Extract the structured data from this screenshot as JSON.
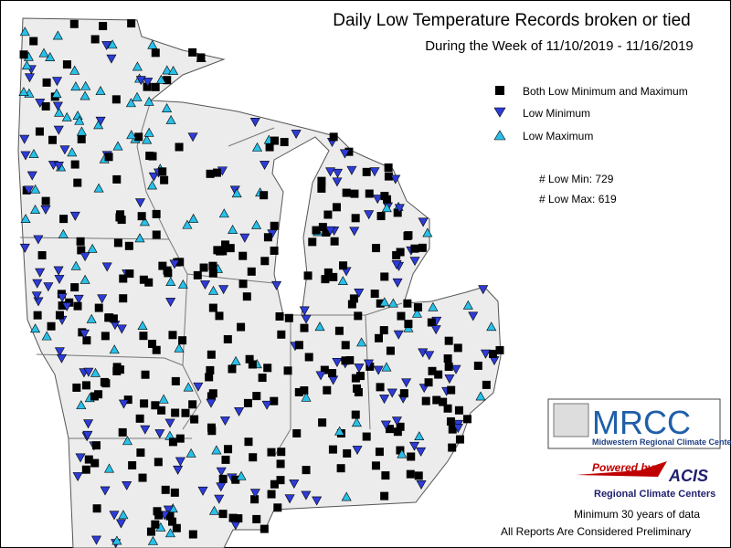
{
  "title": "Daily Low Temperature Records broken or tied",
  "subtitle": "During the Week of 11/10/2019 - 11/16/2019",
  "legend": [
    {
      "label": "Both Low Minimum and Maximum"
    },
    {
      "label": "Low Minimum"
    },
    {
      "label": "Low Maximum"
    }
  ],
  "counts": [
    "# Low Min: 729",
    "# Low Max: 619"
  ],
  "logo": {
    "name": "MRCC",
    "subtitle": "Midwestern Regional Climate Center"
  },
  "powered": {
    "text": "Powered by",
    "name": "ACIS",
    "subtitle": "Regional Climate Centers"
  },
  "footer": [
    "Minimum 30 years of data",
    "All Reports Are Considered Preliminary"
  ]
}
